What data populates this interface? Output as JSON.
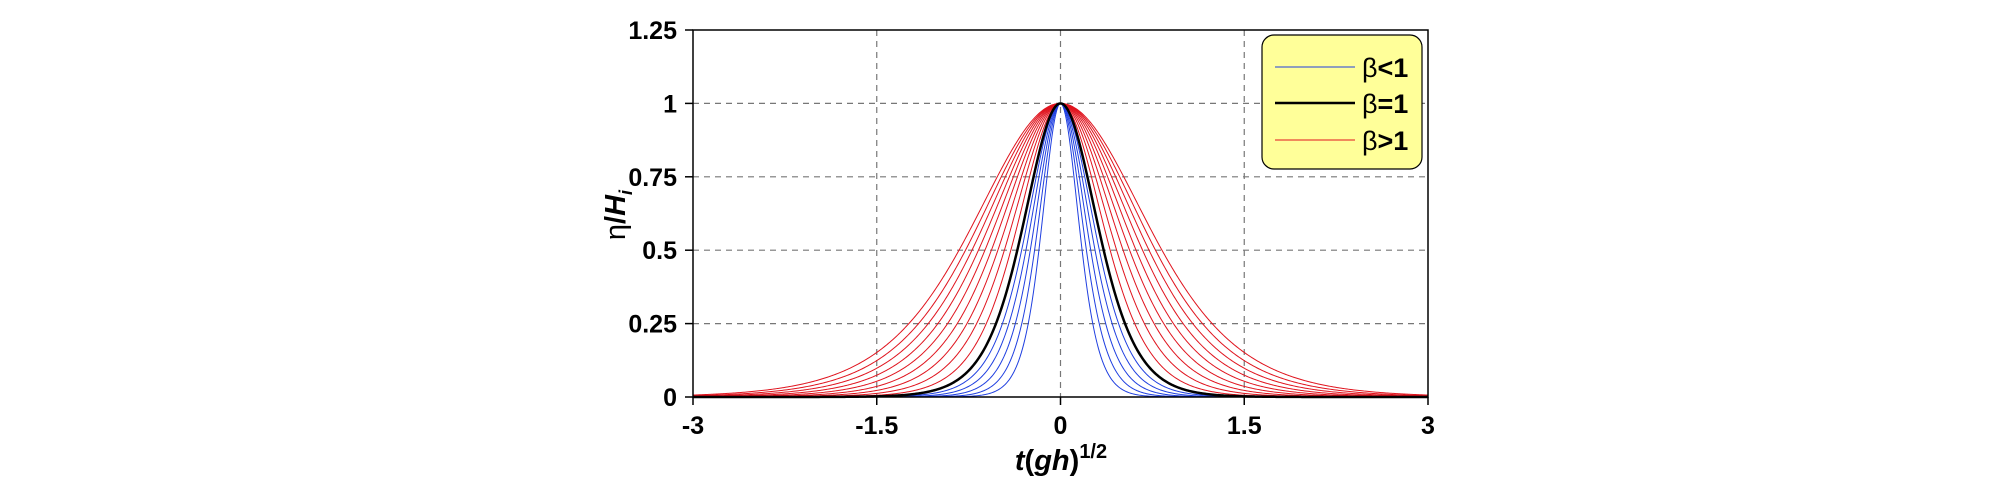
{
  "chart_data": {
    "type": "line",
    "title": "",
    "xlabel": {
      "italic": "t",
      "mid": "(",
      "italic2": "gh",
      "end": ")",
      "sup": "1/2"
    },
    "ylabel": {
      "eta": "η",
      "slash": "/",
      "H": "H",
      "sub": "i"
    },
    "xlim": [
      -3,
      3
    ],
    "ylim": [
      0,
      1.25
    ],
    "xticks": [
      -3,
      -1.5,
      0,
      1.5,
      3
    ],
    "xtick_labels": [
      "-3",
      "-1.5",
      "0",
      "1.5",
      "3"
    ],
    "yticks": [
      0,
      0.25,
      0.5,
      0.75,
      1,
      1.25
    ],
    "ytick_labels": [
      "0",
      "0.25",
      "0.5",
      "0.75",
      "1",
      "1.25"
    ],
    "grid": "dashed",
    "legend_position": "top-right",
    "legend": [
      {
        "symbol": "β",
        "label": "<1",
        "color": "#1f3fe0",
        "width": 1
      },
      {
        "symbol": "β",
        "label": "=1",
        "color": "#000000",
        "width": 2.5
      },
      {
        "symbol": "β",
        "label": ">1",
        "color": "#e0141e",
        "width": 1
      }
    ],
    "curve_formula": "eta/H = sech^2(x / w)",
    "series": [
      {
        "name": "beta<1",
        "color": "#1f3fe0",
        "width": 1,
        "w": [
          0.2,
          0.24,
          0.28,
          0.32,
          0.36
        ]
      },
      {
        "name": "beta=1",
        "color": "#000000",
        "width": 2.5,
        "w": [
          0.4
        ]
      },
      {
        "name": "beta>1",
        "color": "#e0141e",
        "width": 1,
        "w": [
          0.46,
          0.52,
          0.58,
          0.64,
          0.7,
          0.76,
          0.82,
          0.88,
          0.94
        ]
      }
    ],
    "legend_bg": "#ffff99"
  }
}
